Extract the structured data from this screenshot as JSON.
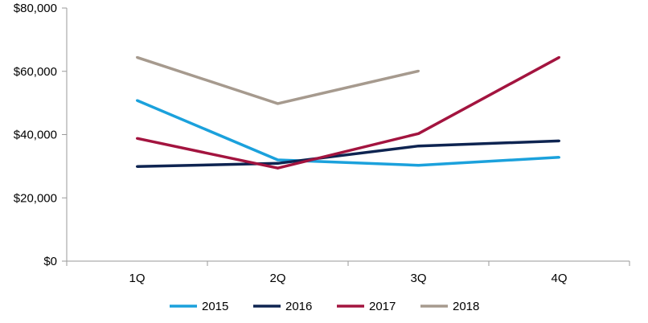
{
  "chart_data": {
    "type": "line",
    "categories": [
      "1Q",
      "2Q",
      "3Q",
      "4Q"
    ],
    "series": [
      {
        "name": "2015",
        "color": "#1ba1dc",
        "values": [
          50800,
          32000,
          30300,
          32800
        ]
      },
      {
        "name": "2016",
        "color": "#0e2451",
        "values": [
          29900,
          30900,
          36400,
          38000
        ]
      },
      {
        "name": "2017",
        "color": "#a3143f",
        "values": [
          38800,
          29400,
          40300,
          64400
        ]
      },
      {
        "name": "2018",
        "color": "#a69a8e",
        "values": [
          64400,
          49800,
          60100,
          null
        ]
      }
    ],
    "yticks": [
      "$0",
      "$20,000",
      "$40,000",
      "$60,000",
      "$80,000"
    ],
    "ylim": [
      0,
      80000
    ],
    "grid": false,
    "legend_position": "bottom",
    "title": "",
    "xlabel": "",
    "ylabel": ""
  }
}
